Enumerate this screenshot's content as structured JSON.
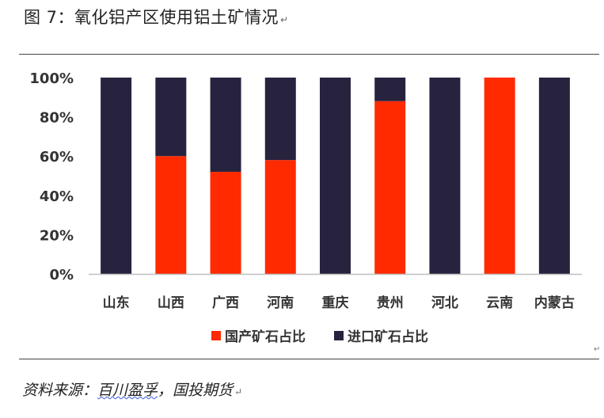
{
  "figure": {
    "title": "图 7：氧化铝产区使用铝土矿情况",
    "source_prefix": "资料来源：",
    "source_underlined": "百川盈孚",
    "source_suffix": "，国投期货"
  },
  "colors": {
    "domestic": "#ff2a00",
    "imported": "#27233f",
    "axis": "#bfbfbf",
    "text": "#333333"
  },
  "chart_data": {
    "type": "bar",
    "stacked": true,
    "normalized": true,
    "title": "",
    "xlabel": "",
    "ylabel": "",
    "ylim": [
      0,
      100
    ],
    "yticks": [
      "0%",
      "20%",
      "40%",
      "60%",
      "80%",
      "100%"
    ],
    "ytick_values": [
      0,
      20,
      40,
      60,
      80,
      100
    ],
    "grid": false,
    "legend_position": "bottom",
    "categories": [
      "山东",
      "山西",
      "广西",
      "河南",
      "重庆",
      "贵州",
      "河北",
      "云南",
      "内蒙古"
    ],
    "series": [
      {
        "name": "国产矿石占比",
        "color": "#ff2a00",
        "values": [
          0,
          60,
          52,
          58,
          0,
          88,
          0,
          100,
          0
        ]
      },
      {
        "name": "进口矿石占比",
        "color": "#27233f",
        "values": [
          100,
          40,
          48,
          42,
          100,
          12,
          100,
          0,
          100
        ]
      }
    ]
  }
}
